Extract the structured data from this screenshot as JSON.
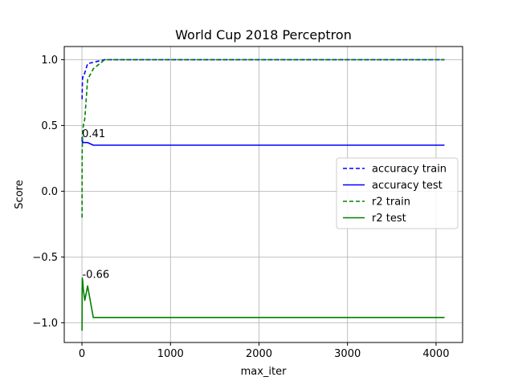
{
  "chart_data": {
    "type": "line",
    "title": "World Cup 2018 Perceptron",
    "xlabel": "max_iter",
    "ylabel": "Score",
    "xlim": [
      -200,
      4300
    ],
    "ylim": [
      -1.15,
      1.1
    ],
    "xticks": [
      0,
      1000,
      2000,
      3000,
      4000
    ],
    "xtick_labels": [
      "0",
      "1000",
      "2000",
      "3000",
      "4000"
    ],
    "yticks": [
      -1.0,
      -0.5,
      0.0,
      0.5,
      1.0
    ],
    "ytick_labels": [
      "−1.0",
      "−0.5",
      "0.0",
      "0.5",
      "1.0"
    ],
    "grid": true,
    "legend_position": "center-right",
    "series": [
      {
        "name": "accuracy train",
        "color": "#0000ff",
        "linestyle": "dashed",
        "x": [
          1,
          2,
          4,
          8,
          16,
          32,
          64,
          128,
          256,
          512,
          1024,
          2048,
          4096
        ],
        "y": [
          0.7,
          0.72,
          0.8,
          0.87,
          0.87,
          0.9,
          0.97,
          0.98,
          1.0,
          1.0,
          1.0,
          1.0,
          1.0
        ]
      },
      {
        "name": "accuracy test",
        "color": "#0000ff",
        "linestyle": "solid",
        "x": [
          1,
          2,
          4,
          8,
          16,
          32,
          64,
          128,
          256,
          512,
          1024,
          2048,
          4096
        ],
        "y": [
          0.41,
          0.38,
          0.4,
          0.37,
          0.37,
          0.37,
          0.37,
          0.35,
          0.35,
          0.35,
          0.35,
          0.35,
          0.35
        ]
      },
      {
        "name": "r2 train",
        "color": "#008000",
        "linestyle": "dashed",
        "x": [
          1,
          2,
          4,
          8,
          16,
          32,
          64,
          128,
          256,
          512,
          1024,
          2048,
          4096
        ],
        "y": [
          -0.2,
          0.28,
          0.35,
          0.45,
          0.5,
          0.55,
          0.85,
          0.93,
          1.0,
          1.0,
          1.0,
          1.0,
          1.0
        ]
      },
      {
        "name": "r2 test",
        "color": "#008000",
        "linestyle": "solid",
        "x": [
          1,
          2,
          4,
          8,
          16,
          32,
          64,
          128,
          256,
          512,
          1024,
          2048,
          4096
        ],
        "y": [
          -1.06,
          -0.75,
          -0.66,
          -0.68,
          -0.75,
          -0.83,
          -0.72,
          -0.96,
          -0.96,
          -0.96,
          -0.96,
          -0.96,
          -0.96
        ]
      }
    ],
    "annotations": [
      {
        "text": "0.41",
        "x": 1,
        "y": 0.41
      },
      {
        "text": "-0.66",
        "x": 4,
        "y": -0.66
      }
    ]
  }
}
